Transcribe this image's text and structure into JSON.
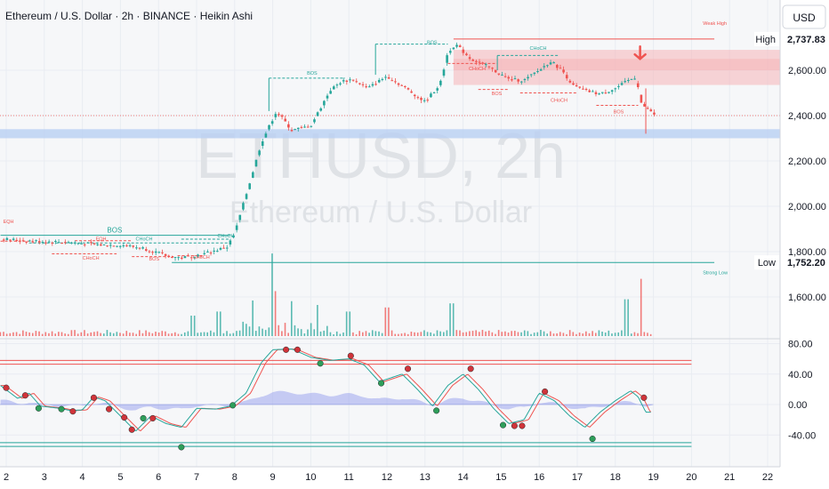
{
  "header": {
    "title": "Ethereum / U.S. Dollar · 2h · BINANCE · Heikin Ashi",
    "currency": "USD"
  },
  "watermark": {
    "symbol": "ETHUSD, 2h",
    "name": "Ethereum / U.S. Dollar"
  },
  "colors": {
    "up": "#26a69a",
    "down": "#ef5350",
    "struct_green": "#26a69a",
    "struct_red": "#ef5350",
    "supply_zone": "#f5b5b8",
    "demand_zone": "#b9cff2",
    "stoch_k": "#26a69a",
    "stoch_d": "#ef5350",
    "histogram": "#9da6ee"
  },
  "chart_data": [
    {
      "type": "candlestick",
      "x_labels": [
        "2",
        "3",
        "4",
        "5",
        "6",
        "7",
        "8",
        "9",
        "10",
        "11",
        "12",
        "13",
        "14",
        "15",
        "16",
        "17",
        "18",
        "19",
        "20",
        "21",
        "22"
      ],
      "ylim": [
        1450,
        2900
      ],
      "y_ticks": [
        {
          "value": 1600,
          "label": "1,600.00"
        },
        {
          "value": 1800,
          "label": "1,800.00"
        },
        {
          "value": 2000,
          "label": "2,000.00"
        },
        {
          "value": 2200,
          "label": "2,200.00"
        },
        {
          "value": 2400,
          "label": "2,400.00"
        },
        {
          "value": 2600,
          "label": "2,600.00"
        }
      ],
      "price_markers": [
        {
          "name": "High",
          "value": 2737.83,
          "label": "2,737.83"
        },
        {
          "name": "Low",
          "value": 1752.2,
          "label": "1,752.20"
        }
      ],
      "anchors": [
        [
          1.9,
          1855
        ],
        [
          2.8,
          1846
        ],
        [
          3.6,
          1842
        ],
        [
          4.5,
          1829
        ],
        [
          5.0,
          1830
        ],
        [
          5.6,
          1815
        ],
        [
          6.2,
          1782
        ],
        [
          6.6,
          1772
        ],
        [
          7.2,
          1790
        ],
        [
          7.8,
          1820
        ],
        [
          8.0,
          1880
        ],
        [
          8.3,
          2050
        ],
        [
          8.7,
          2280
        ],
        [
          9.1,
          2420
        ],
        [
          9.5,
          2335
        ],
        [
          10.0,
          2355
        ],
        [
          10.5,
          2510
        ],
        [
          10.8,
          2550
        ],
        [
          11.1,
          2560
        ],
        [
          11.5,
          2520
        ],
        [
          12.0,
          2575
        ],
        [
          12.5,
          2520
        ],
        [
          13.0,
          2460
        ],
        [
          13.4,
          2540
        ],
        [
          13.6,
          2680
        ],
        [
          13.8,
          2715
        ],
        [
          14.2,
          2650
        ],
        [
          14.6,
          2620
        ],
        [
          15.2,
          2560
        ],
        [
          15.6,
          2555
        ],
        [
          16.0,
          2600
        ],
        [
          16.3,
          2640
        ],
        [
          16.6,
          2600
        ],
        [
          16.9,
          2530
        ],
        [
          17.2,
          2510
        ],
        [
          17.6,
          2495
        ],
        [
          18.0,
          2520
        ],
        [
          18.4,
          2560
        ],
        [
          18.55,
          2570
        ],
        [
          18.7,
          2440
        ],
        [
          18.85,
          2430
        ],
        [
          19.0,
          2405
        ]
      ],
      "volume_spikes": [
        [
          6.9,
          0.25
        ],
        [
          7.6,
          0.3
        ],
        [
          8.5,
          0.4
        ],
        [
          9.0,
          1.0
        ],
        [
          9.1,
          0.5
        ],
        [
          9.5,
          0.35
        ],
        [
          10.2,
          0.35
        ],
        [
          11.0,
          0.3
        ],
        [
          12.0,
          0.35
        ],
        [
          13.7,
          0.4
        ],
        [
          18.3,
          0.45
        ],
        [
          18.7,
          0.7
        ]
      ],
      "annotations": [
        {
          "text": "BOS",
          "x": 4.65,
          "y": 1885,
          "color": "green",
          "size": "mid"
        },
        {
          "text": "EQH",
          "x": 4.35,
          "y": 1850,
          "color": "red"
        },
        {
          "text": "EQH",
          "x": 1.92,
          "y": 1925,
          "color": "red"
        },
        {
          "text": "CHoCH",
          "x": 5.4,
          "y": 1850,
          "color": "green"
        },
        {
          "text": "CHoCH",
          "x": 7.55,
          "y": 1862,
          "color": "green"
        },
        {
          "text": "CHoCH",
          "x": 4.0,
          "y": 1765,
          "color": "red"
        },
        {
          "text": "BOS",
          "x": 5.75,
          "y": 1760,
          "color": "red"
        },
        {
          "text": "CHoCH",
          "x": 6.9,
          "y": 1768,
          "color": "red"
        },
        {
          "text": "BOS",
          "x": 9.9,
          "y": 2580,
          "color": "green"
        },
        {
          "text": "BOS",
          "x": 13.05,
          "y": 2715,
          "color": "green"
        },
        {
          "text": "CHoCH",
          "x": 14.15,
          "y": 2600,
          "color": "red"
        },
        {
          "text": "CHoCH",
          "x": 15.75,
          "y": 2690,
          "color": "green"
        },
        {
          "text": "BOS",
          "x": 14.75,
          "y": 2490,
          "color": "red"
        },
        {
          "text": "CHoCH",
          "x": 16.3,
          "y": 2460,
          "color": "red"
        },
        {
          "text": "BOS",
          "x": 17.95,
          "y": 2410,
          "color": "red"
        },
        {
          "text": "Weak High",
          "x": 20.3,
          "y": 2800,
          "color": "red"
        },
        {
          "text": "Strong Low",
          "x": 20.3,
          "y": 1700,
          "color": "green"
        }
      ]
    },
    {
      "type": "line",
      "title": "",
      "ylim": [
        -75,
        95
      ],
      "y_ticks": [
        {
          "value": 80,
          "label": "80.00"
        },
        {
          "value": 40,
          "label": "40.00"
        },
        {
          "value": 0,
          "label": "0.00"
        },
        {
          "value": -40,
          "label": "-40.00"
        }
      ],
      "levels": {
        "upper": [
          53,
          58
        ],
        "lower": [
          -50,
          -55
        ]
      },
      "stoch_anchors": [
        [
          1.85,
          25
        ],
        [
          2.3,
          8
        ],
        [
          2.6,
          15
        ],
        [
          2.9,
          -2
        ],
        [
          3.4,
          -5
        ],
        [
          3.7,
          -8
        ],
        [
          4.0,
          -7
        ],
        [
          4.3,
          10
        ],
        [
          4.6,
          5
        ],
        [
          5.1,
          -20
        ],
        [
          5.4,
          -35
        ],
        [
          5.8,
          -15
        ],
        [
          6.2,
          -25
        ],
        [
          6.6,
          -30
        ],
        [
          7.0,
          -5
        ],
        [
          7.5,
          -6
        ],
        [
          7.9,
          -2
        ],
        [
          8.3,
          15
        ],
        [
          8.7,
          55
        ],
        [
          9.0,
          72
        ],
        [
          9.5,
          73
        ],
        [
          10.0,
          62
        ],
        [
          10.5,
          58
        ],
        [
          11.0,
          60
        ],
        [
          11.4,
          52
        ],
        [
          11.8,
          30
        ],
        [
          12.4,
          40
        ],
        [
          12.8,
          20
        ],
        [
          13.2,
          -2
        ],
        [
          13.6,
          25
        ],
        [
          14.0,
          40
        ],
        [
          14.4,
          20
        ],
        [
          14.8,
          -5
        ],
        [
          15.2,
          -25
        ],
        [
          15.6,
          -20
        ],
        [
          16.0,
          15
        ],
        [
          16.4,
          5
        ],
        [
          16.8,
          -15
        ],
        [
          17.2,
          -30
        ],
        [
          17.6,
          -10
        ],
        [
          18.0,
          5
        ],
        [
          18.4,
          18
        ],
        [
          18.6,
          10
        ],
        [
          18.8,
          -10
        ]
      ],
      "dots": [
        {
          "x": 2.0,
          "y": 22,
          "c": "red"
        },
        {
          "x": 2.5,
          "y": 12,
          "c": "red"
        },
        {
          "x": 2.85,
          "y": -5,
          "c": "green"
        },
        {
          "x": 3.45,
          "y": -6,
          "c": "green"
        },
        {
          "x": 3.75,
          "y": -9,
          "c": "red"
        },
        {
          "x": 4.3,
          "y": 9,
          "c": "red"
        },
        {
          "x": 4.7,
          "y": -6,
          "c": "red"
        },
        {
          "x": 5.1,
          "y": -17,
          "c": "red"
        },
        {
          "x": 5.3,
          "y": -33,
          "c": "red"
        },
        {
          "x": 5.6,
          "y": -18,
          "c": "green"
        },
        {
          "x": 5.85,
          "y": -18,
          "c": "red"
        },
        {
          "x": 6.6,
          "y": -56,
          "c": "green"
        },
        {
          "x": 7.95,
          "y": -1,
          "c": "green"
        },
        {
          "x": 9.35,
          "y": 72,
          "c": "red"
        },
        {
          "x": 9.65,
          "y": 72,
          "c": "red"
        },
        {
          "x": 10.25,
          "y": 54,
          "c": "green"
        },
        {
          "x": 11.05,
          "y": 64,
          "c": "red"
        },
        {
          "x": 11.85,
          "y": 28,
          "c": "green"
        },
        {
          "x": 12.55,
          "y": 47,
          "c": "red"
        },
        {
          "x": 13.3,
          "y": -8,
          "c": "green"
        },
        {
          "x": 14.2,
          "y": 47,
          "c": "red"
        },
        {
          "x": 15.05,
          "y": -27,
          "c": "green"
        },
        {
          "x": 15.35,
          "y": -28,
          "c": "red"
        },
        {
          "x": 15.55,
          "y": -28,
          "c": "red"
        },
        {
          "x": 16.15,
          "y": 17,
          "c": "red"
        },
        {
          "x": 17.4,
          "y": -45,
          "c": "green"
        },
        {
          "x": 18.75,
          "y": 9,
          "c": "red"
        }
      ]
    }
  ]
}
